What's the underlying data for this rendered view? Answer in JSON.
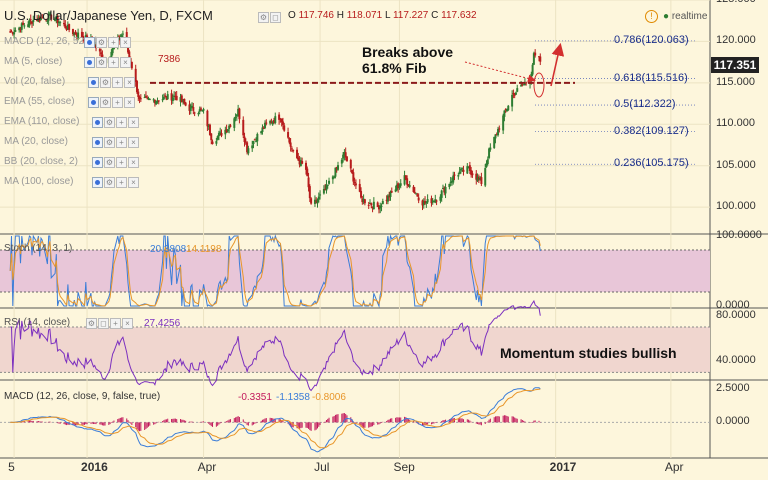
{
  "header": {
    "symbol": "U.S. Dollar/Japanese Yen, D, FXCM",
    "o_label": "O",
    "o": "117.746",
    "h_label": "H",
    "h": "118.071",
    "l_label": "L",
    "l": "117.227",
    "c_label": "C",
    "c": "117.632",
    "status": "realtime"
  },
  "indicators": [
    "MACD (12, 26, 52, close)",
    "MA (5, close)",
    "Vol (20, false)",
    "EMA (55, close)",
    "EMA (110, close)",
    "MA (20, close)",
    "BB (20, close, 2)",
    "MA (100, close)"
  ],
  "ma5_value": "7386",
  "price_tag": "117.351",
  "annotations": {
    "breaks_line1": "Breaks above",
    "breaks_line2": "61.8% Fib",
    "momentum": "Momentum studies bullish"
  },
  "colors": {
    "background": "#fdf6dc",
    "up_candle": "#2e7d32",
    "down_candle": "#b71c1c",
    "resistance_line": "#8b1a1a",
    "arrow": "#d32f2f",
    "stoch_band": "#e8c6d8",
    "rsi_band": "#f0d6cf",
    "rsi_line": "#7b2fbf",
    "stoch_k": "#3b7dd8",
    "stoch_d": "#e8962a",
    "macd_line": "#3b7dd8",
    "signal_line": "#e8962a",
    "histogram": "#c2185b",
    "fib_text": "#1b2f8a"
  },
  "fib_levels": [
    {
      "label": "0.786(120.063)",
      "value": 120.063
    },
    {
      "label": "0.618(115.516)",
      "value": 115.516
    },
    {
      "label": "0.5(112.322)",
      "value": 112.322
    },
    {
      "label": "0.382(109.127)",
      "value": 109.127
    },
    {
      "label": "0.236(105.175)",
      "value": 105.175
    }
  ],
  "stoch": {
    "label": "Stoch (14, 3, 1)",
    "k": "20.3808",
    "d": "14.1198"
  },
  "rsi": {
    "label": "RSI (14, close)",
    "value": "27.4256"
  },
  "macd": {
    "label": "MACD (12, 26, close, 9, false, true)",
    "hist": "-0.3351",
    "macd": "-1.1358",
    "signal": "-0.8006"
  },
  "chart_data": {
    "type": "candlestick",
    "title": "U.S. Dollar/Japanese Yen, D, FXCM",
    "price_ylim": [
      97,
      125
    ],
    "price_ticks": [
      "125.000",
      "120.000",
      "115.000",
      "110.000",
      "105.000",
      "100.000"
    ],
    "price_tick_values": [
      125,
      120,
      115,
      110,
      105,
      100
    ],
    "x_ticks": [
      "5",
      "2016",
      "Apr",
      "Jul",
      "Sep",
      "2017",
      "Apr"
    ],
    "resistance_level": 115.0,
    "price_path": [
      [
        "2015-11-01",
        121.0
      ],
      [
        "2015-11-20",
        122.6
      ],
      [
        "2015-12-05",
        123.0
      ],
      [
        "2015-12-20",
        121.2
      ],
      [
        "2016-01-05",
        120.0
      ],
      [
        "2016-01-15",
        117.6
      ],
      [
        "2016-01-29",
        121.0
      ],
      [
        "2016-02-05",
        117.0
      ],
      [
        "2016-02-11",
        112.8
      ],
      [
        "2016-02-25",
        113.0
      ],
      [
        "2016-03-10",
        113.4
      ],
      [
        "2016-03-20",
        112.0
      ],
      [
        "2016-04-01",
        111.5
      ],
      [
        "2016-04-08",
        108.0
      ],
      [
        "2016-04-20",
        109.6
      ],
      [
        "2016-04-28",
        111.6
      ],
      [
        "2016-05-05",
        107.0
      ],
      [
        "2016-05-20",
        110.0
      ],
      [
        "2016-05-31",
        111.0
      ],
      [
        "2016-06-10",
        106.5
      ],
      [
        "2016-06-20",
        104.5
      ],
      [
        "2016-06-24",
        100.0
      ],
      [
        "2016-07-05",
        102.0
      ],
      [
        "2016-07-20",
        106.4
      ],
      [
        "2016-08-02",
        101.0
      ],
      [
        "2016-08-15",
        100.0
      ],
      [
        "2016-08-25",
        101.5
      ],
      [
        "2016-09-05",
        103.5
      ],
      [
        "2016-09-20",
        100.4
      ],
      [
        "2016-10-01",
        101.2
      ],
      [
        "2016-10-15",
        104.0
      ],
      [
        "2016-10-25",
        104.6
      ],
      [
        "2016-11-04",
        103.0
      ],
      [
        "2016-11-10",
        106.7
      ],
      [
        "2016-11-20",
        110.5
      ],
      [
        "2016-11-28",
        113.5
      ],
      [
        "2016-12-05",
        114.5
      ],
      [
        "2016-12-12",
        115.5
      ],
      [
        "2016-12-15",
        118.2
      ],
      [
        "2016-12-20",
        117.6
      ]
    ],
    "stoch_ylim": [
      0,
      100
    ],
    "stoch_ticks": [
      "100.0000",
      "0.0000"
    ],
    "stoch_band": [
      20,
      80
    ],
    "rsi_ylim": [
      25,
      85
    ],
    "rsi_ticks": [
      "80.0000",
      "40.0000"
    ],
    "rsi_band": [
      30,
      70
    ],
    "macd_ylim": [
      -2.5,
      3.0
    ],
    "macd_ticks": [
      "2.5000",
      "0.0000"
    ]
  }
}
